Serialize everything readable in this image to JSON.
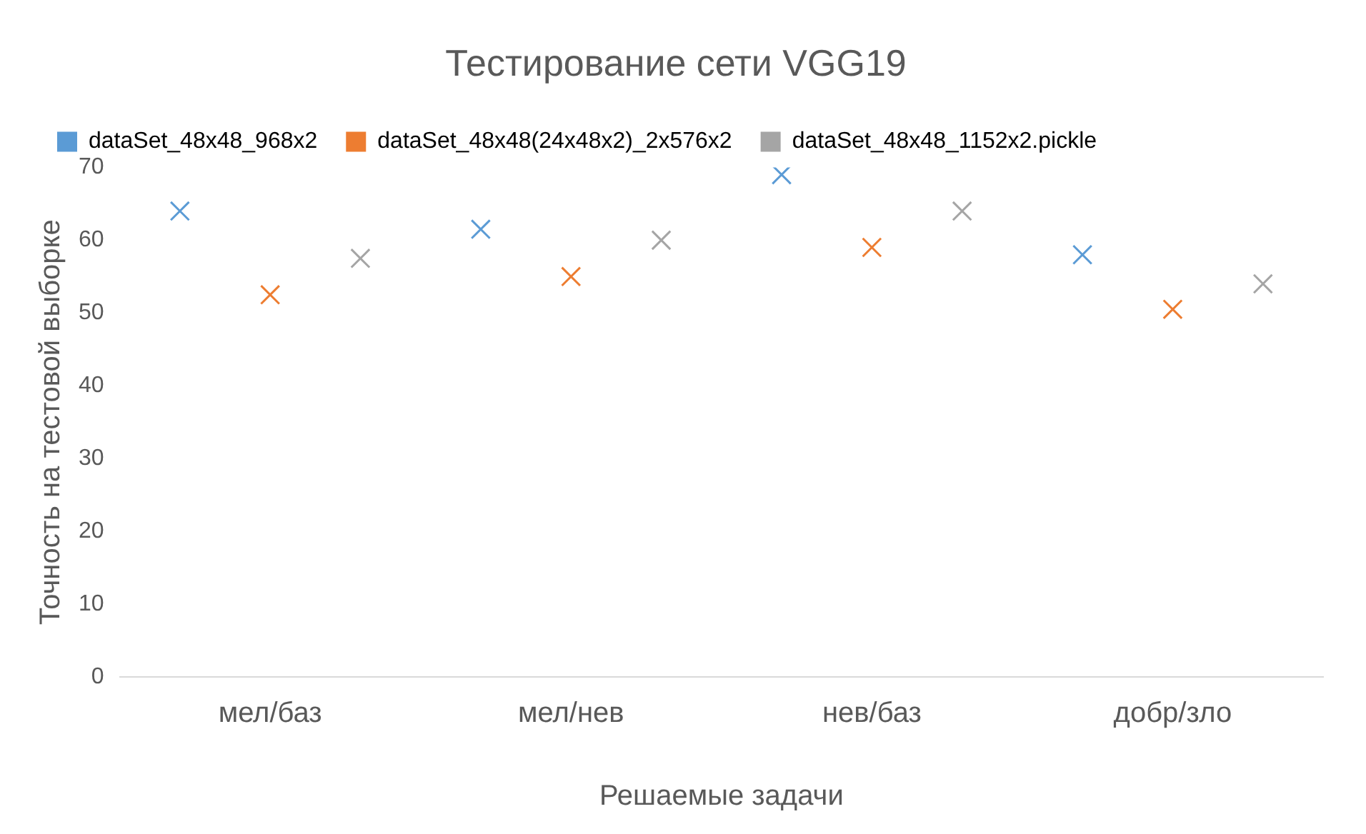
{
  "chart_data": {
    "type": "scatter",
    "title": "Тестирование сети VGG19",
    "xlabel": "Решаемые задачи",
    "ylabel": "Точность на тестовой выборке",
    "categories": [
      "мел/баз",
      "мел/нев",
      "нев/баз",
      "добр/зло"
    ],
    "series": [
      {
        "name": "dataSet_48x48_968x2",
        "color": "#5b9bd5",
        "values": [
          64,
          61.5,
          69,
          58
        ]
      },
      {
        "name": "dataSet_48x48(24x48x2)_2x576x2",
        "color": "#ed7d31",
        "values": [
          52.5,
          55,
          59,
          50.5
        ]
      },
      {
        "name": "dataSet_48x48_1152x2.pickle",
        "color": "#a5a5a5",
        "values": [
          57.5,
          60,
          64,
          54
        ]
      }
    ],
    "ylim": [
      0,
      70
    ],
    "yticks": [
      0,
      10,
      20,
      30,
      40,
      50,
      60,
      70
    ],
    "grid": false,
    "legend": "top",
    "marker": "cross"
  }
}
